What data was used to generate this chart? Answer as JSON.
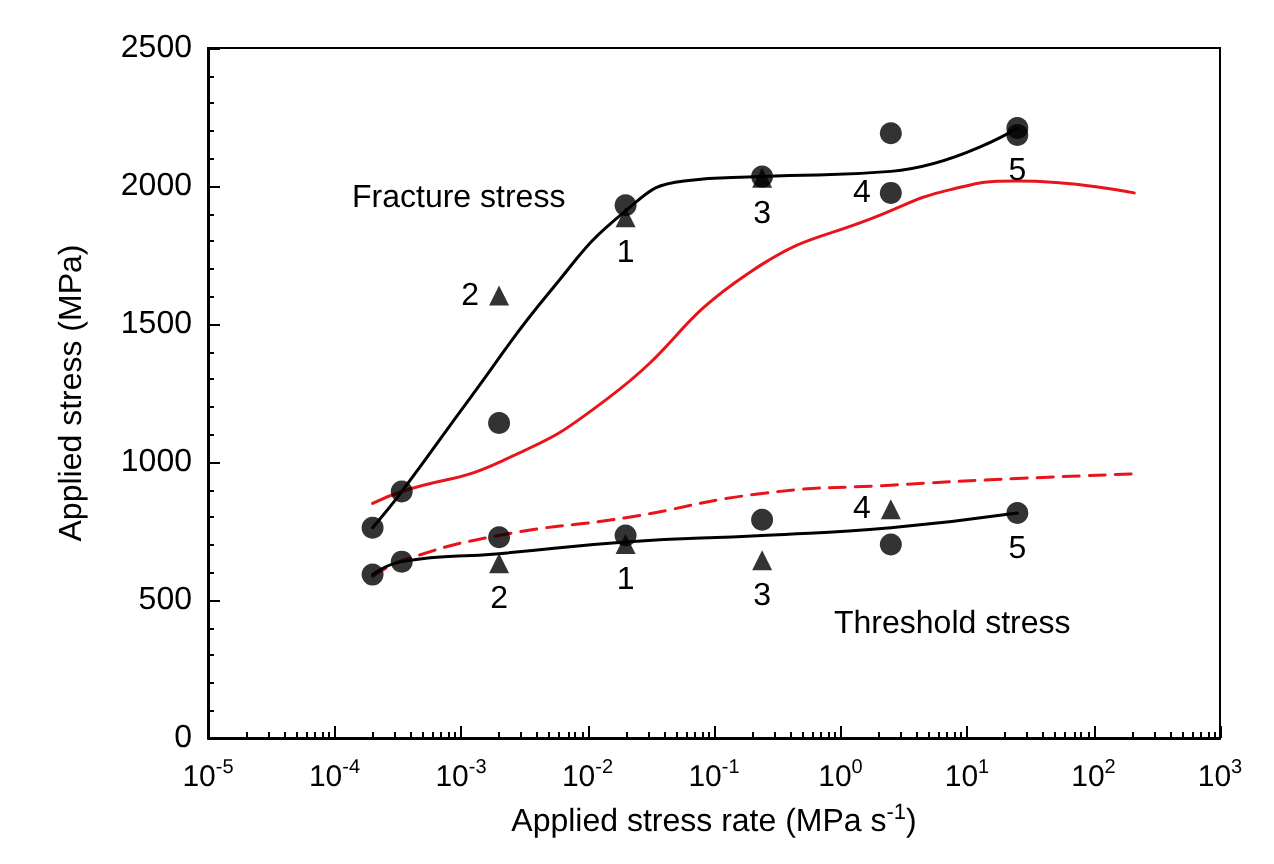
{
  "chart_data": {
    "type": "scatter",
    "xlabel": "Applied stress rate (MPa s$^{-1}$)",
    "ylabel": "Applied stress (MPa)",
    "log": "x",
    "grid": false,
    "xlim": [
      1e-05,
      1000
    ],
    "xticks": [
      {
        "value": 1e-05,
        "label": "10$^{-5}$"
      },
      {
        "value": 0.0001,
        "label": "10$^{-4}$"
      },
      {
        "value": 0.001,
        "label": "10$^{-3}$"
      },
      {
        "value": 0.01,
        "label": "10$^{-2}$"
      },
      {
        "value": 0.1,
        "label": "10$^{-1}$"
      },
      {
        "value": 1,
        "label": "10$^{0}$"
      },
      {
        "value": 10,
        "label": "10$^{1}$"
      },
      {
        "value": 100,
        "label": "10$^{2}$"
      },
      {
        "value": 1000,
        "label": "10$^{3}$"
      }
    ],
    "ylim": [
      0,
      2500
    ],
    "yticks": [
      0,
      500,
      1000,
      1500,
      2000,
      2500
    ],
    "series": [
      {
        "type": "line",
        "color": "#e8141b",
        "line_style": "solid",
        "marker": "none",
        "x": [
          0.0002,
          0.00034,
          0.002,
          0.015,
          0.19,
          2.2,
          7.4,
          25,
          210
        ],
        "values": [
          850,
          893,
          999,
          1236,
          1686,
          1900,
          1987,
          2018,
          1975
        ]
      },
      {
        "type": "line",
        "color": "#e8141b",
        "line_style": "dashed",
        "marker": "none",
        "x": [
          0.0002,
          0.00035,
          0.002,
          0.02,
          0.24,
          2.5,
          25,
          210
        ],
        "values": [
          585,
          644,
          734,
          798,
          886,
          916,
          940,
          957
        ]
      },
      {
        "type": "line",
        "color": "#000000",
        "line_style": "solid",
        "marker": "none",
        "x": [
          0.0002,
          0.00034,
          0.0012,
          0.005,
          0.02,
          0.058,
          0.24,
          2.5,
          25
        ],
        "values": [
          762,
          893,
          1236,
          1615,
          1910,
          2018,
          2034,
          2053,
          2210
        ]
      },
      {
        "type": "line",
        "color": "#000000",
        "line_style": "solid",
        "marker": "none",
        "x": [
          0.0002,
          0.00034,
          0.002,
          0.02,
          0.24,
          2.5,
          25
        ],
        "values": [
          592,
          639,
          668,
          710,
          734,
          762,
          815
        ]
      },
      {
        "type": "scatter",
        "color": "#000000",
        "marker": "circle",
        "x": [
          0.0002,
          0.00034,
          0.002,
          0.02,
          0.24,
          2.5,
          2.5,
          25,
          25
        ],
        "values": [
          762,
          893,
          1141,
          1930,
          2034,
          2191,
          1975,
          2210,
          2185
        ]
      },
      {
        "type": "scatter",
        "color": "#000000",
        "marker": "triangle",
        "x": [
          0.002,
          0.02,
          0.24
        ],
        "values": [
          1603,
          1887,
          2030
        ]
      },
      {
        "color": "#000000",
        "marker": "circle",
        "x": [
          0.0002,
          0.00034,
          0.002,
          0.02,
          0.24,
          2.5,
          25
        ],
        "values": [
          592,
          639,
          727,
          734,
          791,
          701,
          815
        ]
      },
      {
        "color": "#000000",
        "marker": "triangle",
        "x": [
          0.002,
          0.02,
          0.24,
          2.5
        ],
        "values": [
          633,
          703,
          644,
          829
        ]
      }
    ],
    "annotations": [
      "Fracture stress",
      "Threshold stress",
      {
        "text": "2",
        "x": 0.002,
        "y": 1603
      },
      {
        "text": "1",
        "x": 0.02,
        "y": 1887
      },
      {
        "text": "3",
        "x": 0.24,
        "y": 2030
      },
      {
        "text": "4",
        "x": 2.5,
        "y": 1975
      },
      {
        "text": "5",
        "x": 25,
        "y": 2185
      },
      {
        "text": "2",
        "x": 0.002,
        "y": 633
      },
      {
        "text": "1",
        "x": 0.02,
        "y": 703
      },
      {
        "text": "3",
        "x": 0.24,
        "y": 644
      },
      {
        "text": "4",
        "x": 2.5,
        "y": 829
      },
      {
        "text": "5",
        "x": 25,
        "y": 815
      }
    ]
  }
}
